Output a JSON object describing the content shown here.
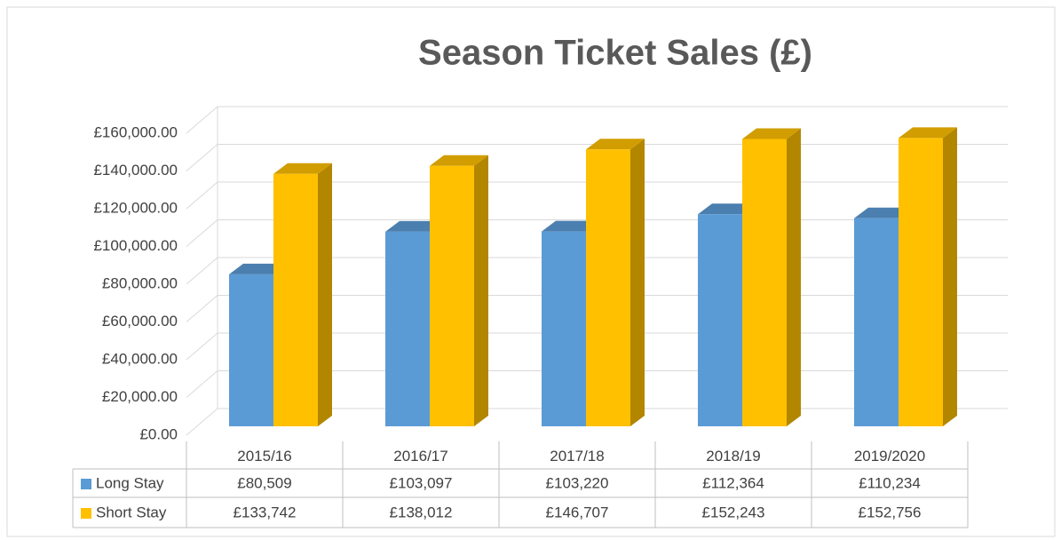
{
  "chart_data": {
    "type": "bar3d",
    "title": "Season Ticket Sales (£)",
    "categories": [
      "2015/16",
      "2016/17",
      "2017/18",
      "2018/19",
      "2019/2020"
    ],
    "series": [
      {
        "name": "Long Stay",
        "color": "#5b9bd5",
        "values": [
          80509,
          103097,
          103220,
          112364,
          110234
        ],
        "value_labels": [
          "£80,509",
          "£103,097",
          "£103,220",
          "£112,364",
          "£110,234"
        ]
      },
      {
        "name": "Short Stay",
        "color": "#ffc000",
        "values": [
          133742,
          138012,
          146707,
          152243,
          152756
        ],
        "value_labels": [
          "£133,742",
          "£138,012",
          "£146,707",
          "£152,243",
          "£152,756"
        ]
      }
    ],
    "ylim": [
      0,
      160000
    ],
    "yticks": [
      {
        "value": 0,
        "label": "£0.00"
      },
      {
        "value": 20000,
        "label": "£20,000.00"
      },
      {
        "value": 40000,
        "label": "£40,000.00"
      },
      {
        "value": 60000,
        "label": "£60,000.00"
      },
      {
        "value": 80000,
        "label": "£80,000.00"
      },
      {
        "value": 100000,
        "label": "£100,000.00"
      },
      {
        "value": 120000,
        "label": "£120,000.00"
      },
      {
        "value": 140000,
        "label": "£140,000.00"
      },
      {
        "value": 160000,
        "label": "£160,000.00"
      }
    ],
    "grid": true,
    "data_table": true
  }
}
